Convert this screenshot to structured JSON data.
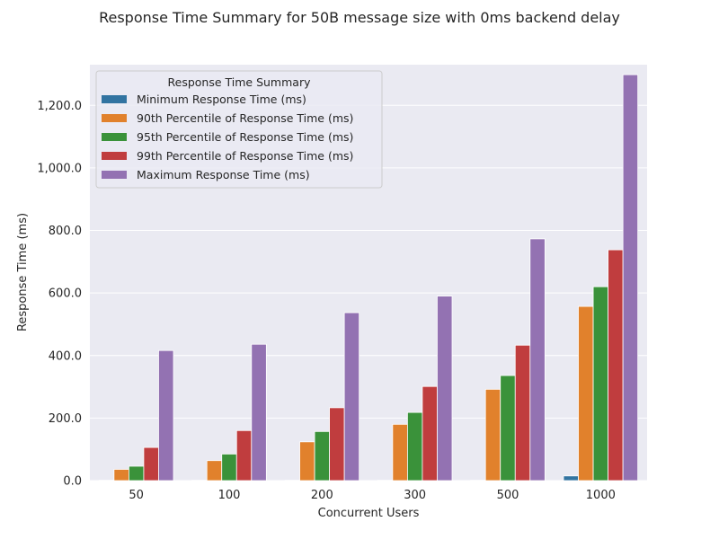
{
  "chart_data": {
    "type": "bar",
    "title": "Response Time Summary for 50B message size with 0ms backend delay",
    "xlabel": "Concurrent Users",
    "ylabel": "Response Time (ms)",
    "categories": [
      "50",
      "100",
      "200",
      "300",
      "500",
      "1000"
    ],
    "ylim": [
      0,
      1330
    ],
    "yticks": [
      0,
      200,
      400,
      600,
      800,
      1000,
      1200
    ],
    "ytick_labels": [
      "0.0",
      "200.0",
      "400.0",
      "600.0",
      "800.0",
      "1,000.0",
      "1,200.0"
    ],
    "grid": true,
    "legend": {
      "title": "Response Time Summary",
      "placement": "top-left"
    },
    "series": [
      {
        "name": "Minimum Response Time (ms)",
        "color": "#3274a1",
        "values": [
          1,
          1,
          1,
          1,
          1,
          15
        ]
      },
      {
        "name": "90th Percentile of Response Time (ms)",
        "color": "#e1812c",
        "values": [
          36,
          64,
          124,
          180,
          292,
          557
        ]
      },
      {
        "name": "95th Percentile of Response Time (ms)",
        "color": "#3a923a",
        "values": [
          46,
          85,
          157,
          218,
          336,
          620
        ]
      },
      {
        "name": "99th Percentile of Response Time (ms)",
        "color": "#c03d3e",
        "values": [
          106,
          160,
          233,
          301,
          433,
          738
        ]
      },
      {
        "name": "Maximum Response Time (ms)",
        "color": "#9372b2",
        "values": [
          416,
          436,
          537,
          590,
          773,
          1298
        ]
      }
    ]
  }
}
